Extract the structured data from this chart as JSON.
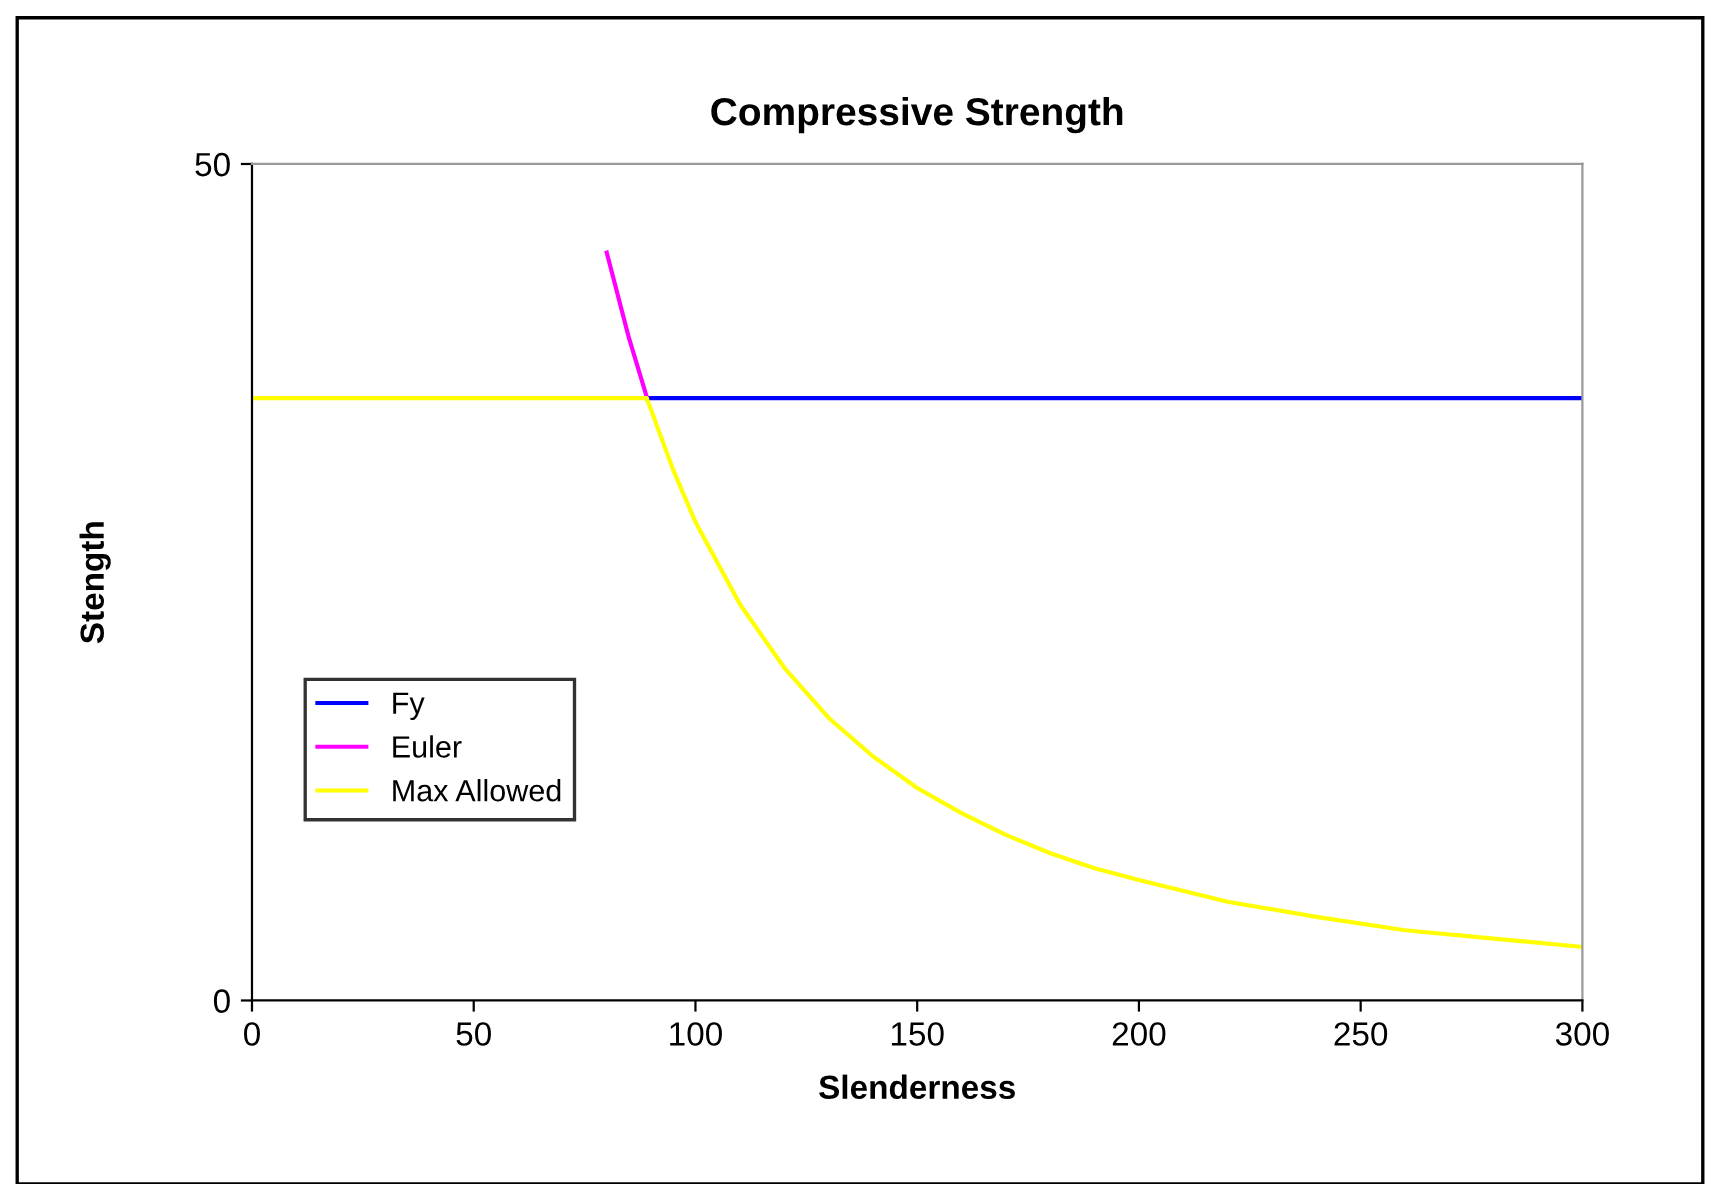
{
  "chart_data": {
    "type": "line",
    "title": "Compressive Strength",
    "xlabel": "Slenderness",
    "ylabel": "Stength",
    "xlim": [
      0,
      300
    ],
    "xticks": [
      0,
      50,
      100,
      150,
      200,
      250,
      300
    ],
    "ylim": [
      0,
      50
    ],
    "yticks": [
      0,
      50
    ],
    "grid": false,
    "legend": "left",
    "marker": "none",
    "line_style": "solid",
    "series": [
      {
        "name": "Fy",
        "color": "#0000ff",
        "x": [
          89,
          300
        ],
        "values": [
          36,
          36
        ]
      },
      {
        "name": "Euler",
        "color": "#ff00ff",
        "x": [
          80,
          85,
          89
        ],
        "values": [
          44.7,
          39.6,
          36.1
        ]
      },
      {
        "name": "Max Allowed",
        "color": "#ffff00",
        "x": [
          0,
          89,
          90,
          95,
          100,
          110,
          120,
          130,
          140,
          150,
          160,
          170,
          180,
          190,
          200,
          220,
          240,
          260,
          280,
          300
        ],
        "values": [
          36,
          36,
          35.3,
          31.7,
          28.6,
          23.7,
          19.9,
          16.9,
          14.6,
          12.7,
          11.2,
          9.9,
          8.8,
          7.9,
          7.2,
          5.9,
          5.0,
          4.2,
          3.7,
          3.2
        ]
      }
    ]
  }
}
